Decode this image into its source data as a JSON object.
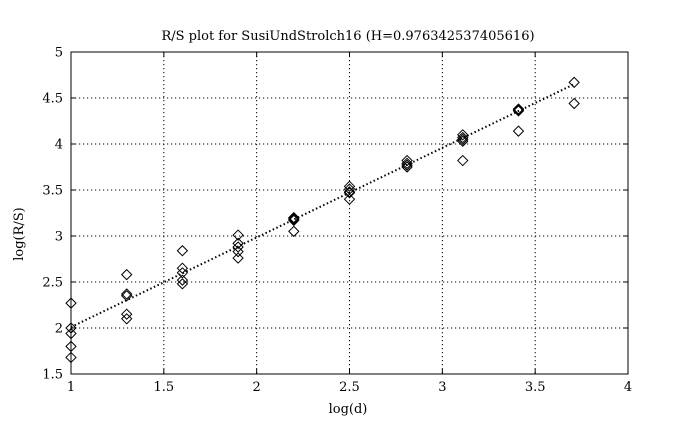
{
  "chart_data": {
    "type": "scatter",
    "title": "R/S plot for SusiUndStrolch16 (H=0.976342537405616)",
    "xlabel": "log(d)",
    "ylabel": "log(R/S)",
    "xlim": [
      1,
      4
    ],
    "ylim": [
      1.5,
      5
    ],
    "x_ticks": [
      1,
      1.5,
      2,
      2.5,
      3,
      3.5,
      4
    ],
    "y_ticks": [
      1.5,
      2,
      2.5,
      3,
      3.5,
      4,
      4.5,
      5
    ],
    "x_tick_labels": [
      "1",
      "1.5",
      "2",
      "2.5",
      "3",
      "3.5",
      "4"
    ],
    "y_tick_labels": [
      "1.5",
      "2",
      "2.5",
      "3",
      "3.5",
      "4",
      "4.5",
      "5"
    ],
    "grid": true,
    "marker": "diamond",
    "series": [
      {
        "points": [
          [
            1.0,
            2.27
          ],
          [
            1.0,
            2.0
          ],
          [
            1.0,
            1.94
          ],
          [
            1.0,
            1.8
          ],
          [
            1.0,
            1.68
          ],
          [
            1.3,
            2.58
          ],
          [
            1.3,
            2.37
          ],
          [
            1.3,
            2.35
          ],
          [
            1.3,
            2.15
          ],
          [
            1.3,
            2.1
          ],
          [
            1.6,
            2.84
          ],
          [
            1.6,
            2.65
          ],
          [
            1.6,
            2.6
          ],
          [
            1.6,
            2.52
          ],
          [
            1.6,
            2.48
          ],
          [
            1.9,
            3.01
          ],
          [
            1.9,
            2.92
          ],
          [
            1.9,
            2.88
          ],
          [
            1.9,
            2.83
          ],
          [
            1.9,
            2.76
          ],
          [
            2.2,
            3.2
          ],
          [
            2.2,
            3.19
          ],
          [
            2.2,
            3.18
          ],
          [
            2.2,
            3.17
          ],
          [
            2.2,
            3.05
          ],
          [
            2.5,
            3.54
          ],
          [
            2.5,
            3.51
          ],
          [
            2.5,
            3.48
          ],
          [
            2.5,
            3.47
          ],
          [
            2.5,
            3.4
          ],
          [
            2.81,
            3.82
          ],
          [
            2.81,
            3.79
          ],
          [
            2.81,
            3.77
          ],
          [
            2.81,
            3.75
          ],
          [
            3.11,
            4.1
          ],
          [
            3.11,
            4.07
          ],
          [
            3.11,
            4.05
          ],
          [
            3.11,
            4.03
          ],
          [
            3.11,
            3.82
          ],
          [
            3.41,
            4.38
          ],
          [
            3.41,
            4.37
          ],
          [
            3.41,
            4.36
          ],
          [
            3.41,
            4.14
          ],
          [
            3.71,
            4.67
          ],
          [
            3.71,
            4.44
          ]
        ]
      }
    ],
    "fit_line": {
      "style": "dotted",
      "from": [
        1.0,
        2.01
      ],
      "to": [
        3.71,
        4.65
      ]
    }
  }
}
